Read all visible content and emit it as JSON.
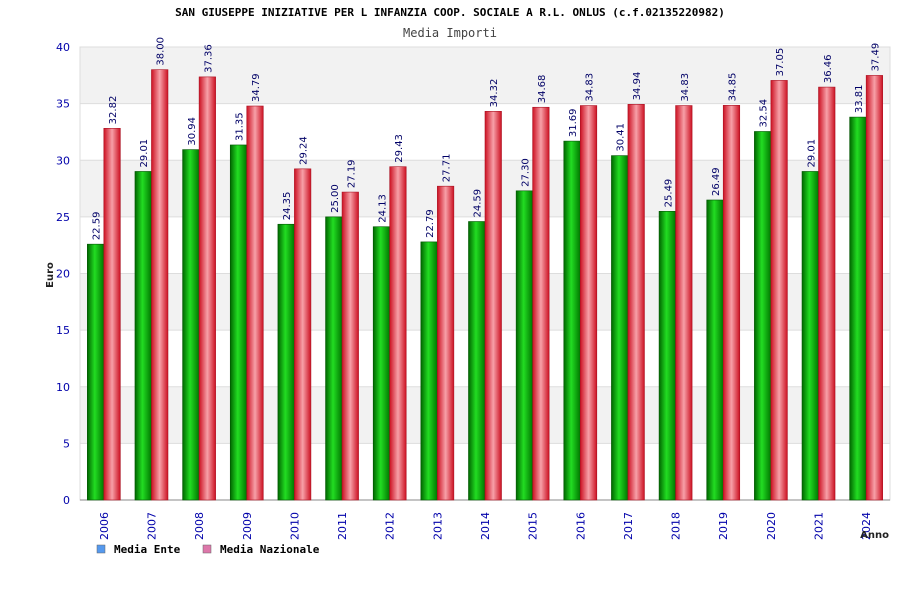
{
  "chart_data": {
    "type": "bar",
    "title": "SAN GIUSEPPE INIZIATIVE PER L INFANZIA COOP. SOCIALE A R.L. ONLUS (c.f.02135220982)",
    "subtitle": "Media Importi",
    "xlabel": "Anno",
    "ylabel": "Euro",
    "ylim": [
      0,
      40
    ],
    "yticks": [
      "0",
      "5",
      "10",
      "15",
      "20",
      "25",
      "30",
      "35",
      "40"
    ],
    "grid": true,
    "legend_position": "bottom-left",
    "categories": [
      "2006",
      "2007",
      "2008",
      "2009",
      "2010",
      "2011",
      "2012",
      "2013",
      "2014",
      "2015",
      "2016",
      "2017",
      "2018",
      "2019",
      "2020",
      "2021",
      "2024"
    ],
    "series": [
      {
        "name": "Media Ente",
        "color": "#00aa00",
        "legend_color": "#5599ee",
        "values": [
          22.59,
          29.01,
          30.94,
          31.35,
          24.35,
          25.0,
          24.13,
          22.79,
          24.59,
          27.3,
          31.69,
          30.41,
          25.49,
          26.49,
          32.54,
          29.01,
          33.81
        ],
        "labels": [
          "22.59",
          "29.01",
          "30.94",
          "31.35",
          "24.35",
          "25.00",
          "24.13",
          "22.79",
          "24.59",
          "27.30",
          "31.69",
          "30.41",
          "25.49",
          "26.49",
          "32.54",
          "29.01",
          "33.81"
        ]
      },
      {
        "name": "Media Nazionale",
        "color": "#ee2233",
        "legend_color": "#dd77aa",
        "values": [
          32.82,
          38.0,
          37.36,
          34.79,
          29.24,
          27.19,
          29.43,
          27.71,
          34.32,
          34.68,
          34.83,
          34.94,
          34.83,
          34.85,
          37.05,
          36.46,
          37.49
        ],
        "labels": [
          "32.82",
          "38.00",
          "37.36",
          "34.79",
          "29.24",
          "27.19",
          "29.43",
          "27.71",
          "34.32",
          "34.68",
          "34.83",
          "34.94",
          "34.83",
          "34.85",
          "37.05",
          "36.46",
          "37.49"
        ]
      }
    ]
  }
}
